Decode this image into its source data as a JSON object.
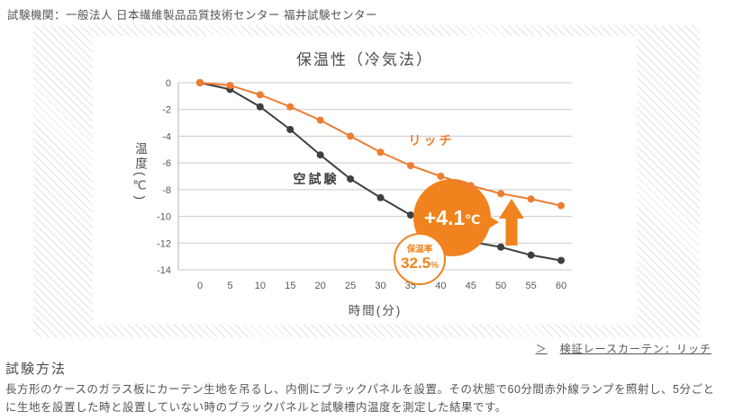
{
  "page": {
    "header_text": "試験機関：一般法人 日本繊維製品品質技術センター 福井試験センター",
    "link": {
      "prefix": "＞",
      "label": "検証レースカーテン：リッチ"
    },
    "method": {
      "heading": "試験方法",
      "body": "長方形のケースのガラス板にカーテン生地を吊るし、内側にブラックパネルを設置。その状態で60分間赤外線ランプを照射し、5分ごとに生地を設置した時と設置していない時のブラックパネルと試験槽内温度を測定した結果です。"
    }
  },
  "chart_data": {
    "type": "line",
    "title": "保温性（冷気法）",
    "xlabel": "時間(分)",
    "ylabel": "温度(℃)",
    "x": [
      0,
      5,
      10,
      15,
      20,
      25,
      30,
      35,
      40,
      45,
      50,
      55,
      60
    ],
    "ylim": [
      -14,
      0
    ],
    "yticks": [
      0,
      -2,
      -4,
      -6,
      -8,
      -10,
      -12,
      -14
    ],
    "grid": true,
    "legend_position": "inline-labels",
    "series": [
      {
        "name": "リッチ",
        "color": "#ED7D31",
        "values": [
          0,
          -0.2,
          -0.9,
          -1.8,
          -2.8,
          -4.0,
          -5.2,
          -6.2,
          -7.0,
          -7.7,
          -8.3,
          -8.7,
          -9.2
        ]
      },
      {
        "name": "空試験",
        "color": "#3F3F3F",
        "values": [
          0,
          -0.5,
          -1.8,
          -3.5,
          -5.4,
          -7.2,
          -8.6,
          -9.9,
          -11.0,
          -11.9,
          -12.3,
          -12.9,
          -13.3
        ]
      }
    ],
    "annotations": {
      "diff_badge": {
        "value": "+4.1",
        "unit": "℃",
        "bg": "#F0831E",
        "text_color": "#FFFFFF"
      },
      "retention_badge": {
        "label": "保温率",
        "value": "32.5",
        "unit": "%",
        "color": "#F0831E",
        "bg": "#FFFFFF"
      },
      "arrow_direction": "up",
      "arrow_color": "#F0831E"
    },
    "style": {
      "grid_color": "#C9C9C9",
      "axis_color": "#B3B3B3",
      "tick_color": "#595959"
    }
  }
}
